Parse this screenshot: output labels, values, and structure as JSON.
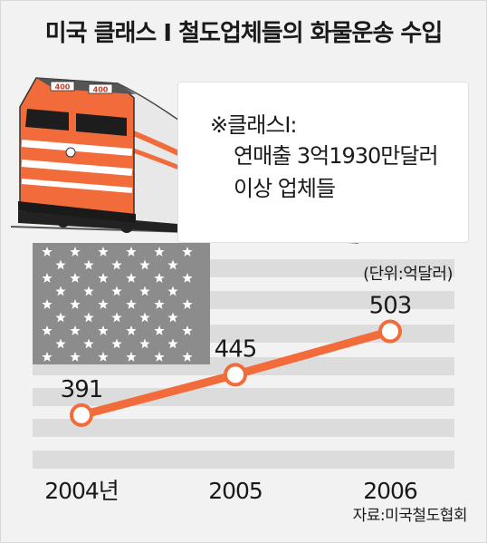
{
  "title": "미국 클래스 Ⅰ 철도업체들의 화물운송 수입",
  "note": {
    "line1": "※클래스Ⅰ:",
    "line2": "연매출 3억1930만달러",
    "line3": "이상 업체들"
  },
  "unit": "(단위:억달러)",
  "source": "자료:미국철도협회",
  "train": {
    "number_plate": "400"
  },
  "colors": {
    "accent": "#f26b3a",
    "flag_gray": "#8c8c8c",
    "stripe_gray": "#dcdcdc",
    "background": "#f2f2f2"
  },
  "chart_data": {
    "type": "line",
    "categories": [
      "2004년",
      "2005",
      "2006"
    ],
    "values": [
      391,
      445,
      503
    ],
    "value_labels": [
      "391",
      "445",
      "503"
    ],
    "ylim": [
      340,
      540
    ],
    "grid": false,
    "legend": "none"
  }
}
